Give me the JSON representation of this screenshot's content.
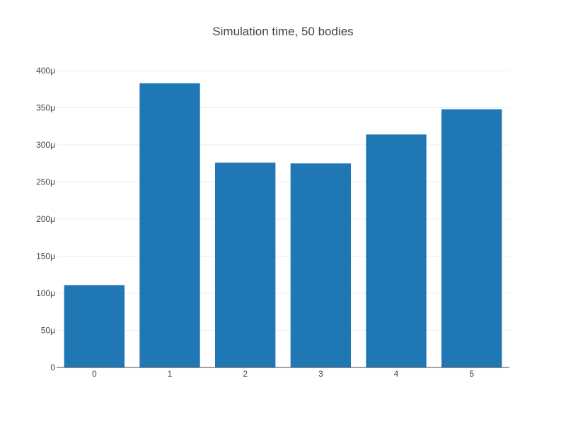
{
  "chart_data": {
    "type": "bar",
    "title": "Simulation time, 50 bodies",
    "xlabel": "",
    "ylabel": "",
    "categories": [
      "0",
      "1",
      "2",
      "3",
      "4",
      "5"
    ],
    "values": [
      0.000111,
      0.000383,
      0.000276,
      0.000275,
      0.000314,
      0.000348
    ],
    "ylim": [
      0,
      0.0004
    ],
    "y_ticks": [
      0,
      5e-05,
      0.0001,
      0.00015,
      0.0002,
      0.00025,
      0.0003,
      0.00035,
      0.0004
    ],
    "y_tick_labels": [
      "0",
      "50μ",
      "100μ",
      "150μ",
      "200μ",
      "250μ",
      "300μ",
      "350μ",
      "400μ"
    ],
    "grid": true,
    "legend": "none",
    "colors": {
      "bar": "#1f77b4",
      "grid": "#eeeeee",
      "axis": "#444444",
      "text": "#444444"
    }
  }
}
